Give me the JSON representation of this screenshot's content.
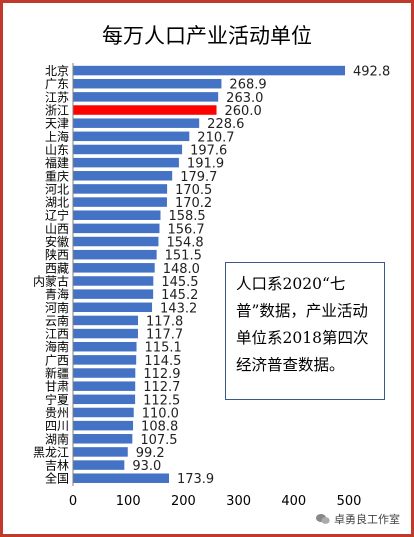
{
  "note": {
    "text": "人口系2020“七普”数据，产业活动单位系2018第四次经济普查数据。"
  },
  "watermark": {
    "text": "卓勇良工作室"
  },
  "colors": {
    "bar": "#4472c4",
    "highlight": "#ff0000",
    "frame": "#c0392b"
  },
  "chart_data": {
    "type": "bar",
    "orientation": "horizontal",
    "title": "每万人口产业活动单位",
    "categories": [
      "北京",
      "广东",
      "江苏",
      "浙江",
      "天津",
      "上海",
      "山东",
      "福建",
      "重庆",
      "河北",
      "湖北",
      "辽宁",
      "山西",
      "安徽",
      "陕西",
      "西藏",
      "内蒙古",
      "青海",
      "河南",
      "云南",
      "江西",
      "海南",
      "广西",
      "新疆",
      "甘肃",
      "宁夏",
      "贵州",
      "四川",
      "湖南",
      "黑龙江",
      "吉林",
      "全国"
    ],
    "values": [
      492.8,
      268.9,
      263.0,
      260.0,
      228.6,
      210.7,
      197.6,
      191.9,
      179.7,
      170.5,
      170.2,
      158.5,
      156.7,
      154.8,
      151.5,
      148.0,
      145.5,
      145.2,
      143.2,
      117.8,
      117.7,
      115.1,
      114.5,
      112.9,
      112.7,
      112.5,
      110.0,
      108.8,
      107.5,
      99.2,
      93.0,
      173.9
    ],
    "value_labels": [
      "492.8",
      "268.9",
      "263.0",
      "260.0",
      "228.6",
      "210.7",
      "197.6",
      "191.9",
      "179.7",
      "170.5",
      "170.2",
      "158.5",
      "156.7",
      "154.8",
      "151.5",
      "148.0",
      "145.5",
      "145.2",
      "143.2",
      "117.8",
      "117.7",
      "115.1",
      "114.5",
      "112.9",
      "112.7",
      "112.5",
      "110.0",
      "108.8",
      "107.5",
      "99.2",
      "93.0",
      "173.9"
    ],
    "highlight_category": "浙江",
    "xlim": [
      0,
      500
    ],
    "xticks": [
      "0",
      "100",
      "200",
      "300",
      "400",
      "500"
    ],
    "grid": false,
    "legend": "none"
  }
}
